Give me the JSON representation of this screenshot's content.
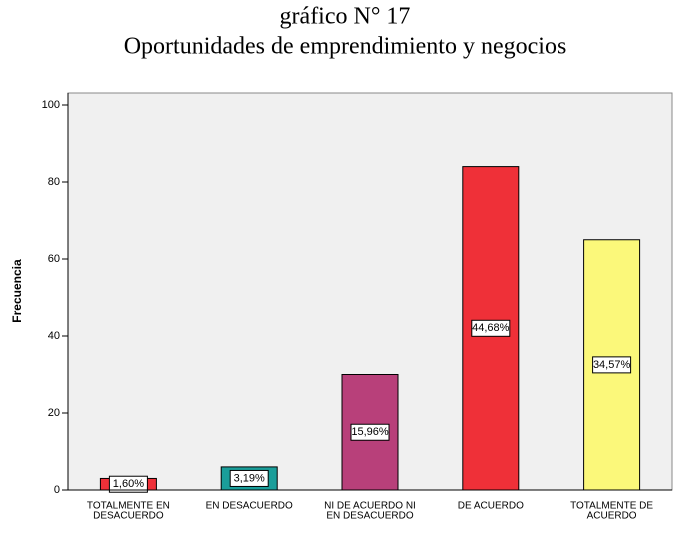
{
  "chart_data": {
    "type": "bar",
    "title": "gráfico N° 17",
    "subtitle": "Oportunidades de emprendimiento y negocios",
    "y_label": "Frecuencia",
    "categories": [
      [
        "TOTALMENTE EN",
        "DESACUERDO"
      ],
      [
        "EN DESACUERDO"
      ],
      [
        "NI DE ACUERDO NI",
        "EN DESACUERDO"
      ],
      [
        "DE ACUERDO"
      ],
      [
        "TOTALMENTE DE",
        "ACUERDO"
      ]
    ],
    "values": [
      3,
      6,
      30,
      84,
      65
    ],
    "annotations": [
      "1,60%",
      "3,19%",
      "15,96%",
      "44,68%",
      "34,57%"
    ],
    "colors": [
      "#ef3038",
      "#1a9e9a",
      "#b8407a",
      "#ef3038",
      "#fbf87a"
    ],
    "ylim": [
      0,
      100
    ],
    "yticks": [
      0,
      20,
      40,
      60,
      80,
      100
    ]
  }
}
